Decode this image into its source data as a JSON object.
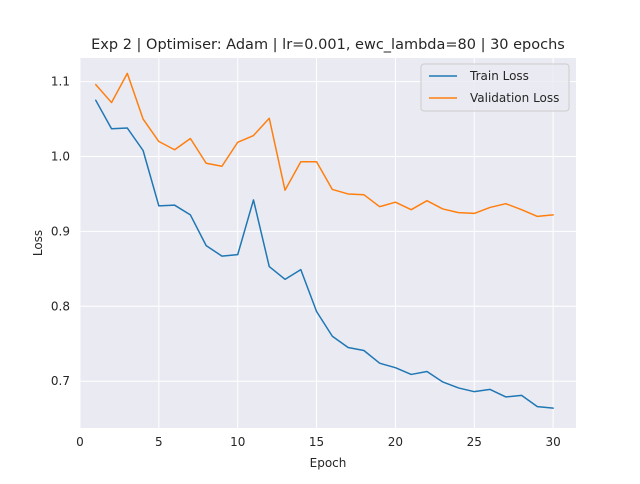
{
  "chart_data": {
    "type": "line",
    "title": "Exp 2 | Optimiser: Adam | lr=0.001, ewc_lambda=80 | 30 epochs",
    "xlabel": "Epoch",
    "ylabel": "Loss",
    "xlim": [
      0,
      31.45
    ],
    "ylim": [
      0.6375,
      1.1315
    ],
    "xticks": [
      0,
      5,
      10,
      15,
      20,
      25,
      30
    ],
    "yticks": [
      0.7,
      0.8,
      0.9,
      1.0,
      1.1
    ],
    "xtick_labels": [
      "0",
      "5",
      "10",
      "15",
      "20",
      "25",
      "30"
    ],
    "ytick_labels": [
      "0.7",
      "0.8",
      "0.9",
      "1.0",
      "1.1"
    ],
    "grid": true,
    "legend_position": "top-right",
    "x": [
      1,
      2,
      3,
      4,
      5,
      6,
      7,
      8,
      9,
      10,
      11,
      12,
      13,
      14,
      15,
      16,
      17,
      18,
      19,
      20,
      21,
      22,
      23,
      24,
      25,
      26,
      27,
      28,
      29,
      30
    ],
    "series": [
      {
        "name": "Train Loss",
        "color": "#1f77b4",
        "values": [
          1.075,
          1.037,
          1.038,
          1.008,
          0.934,
          0.935,
          0.922,
          0.881,
          0.867,
          0.869,
          0.942,
          0.853,
          0.836,
          0.849,
          0.793,
          0.76,
          0.745,
          0.741,
          0.724,
          0.718,
          0.709,
          0.713,
          0.699,
          0.691,
          0.686,
          0.689,
          0.679,
          0.681,
          0.666,
          0.664
        ]
      },
      {
        "name": "Validation Loss",
        "color": "#ff7f0e",
        "values": [
          1.096,
          1.072,
          1.111,
          1.05,
          1.02,
          1.009,
          1.024,
          0.991,
          0.987,
          1.019,
          1.028,
          1.051,
          0.955,
          0.993,
          0.993,
          0.956,
          0.95,
          0.949,
          0.933,
          0.939,
          0.929,
          0.941,
          0.93,
          0.925,
          0.924,
          0.932,
          0.937,
          0.929,
          0.92,
          0.922
        ]
      }
    ]
  },
  "style": {
    "plot_background": "#eaeaf2",
    "grid_color": "#ffffff",
    "figure_background": "#ffffff"
  }
}
